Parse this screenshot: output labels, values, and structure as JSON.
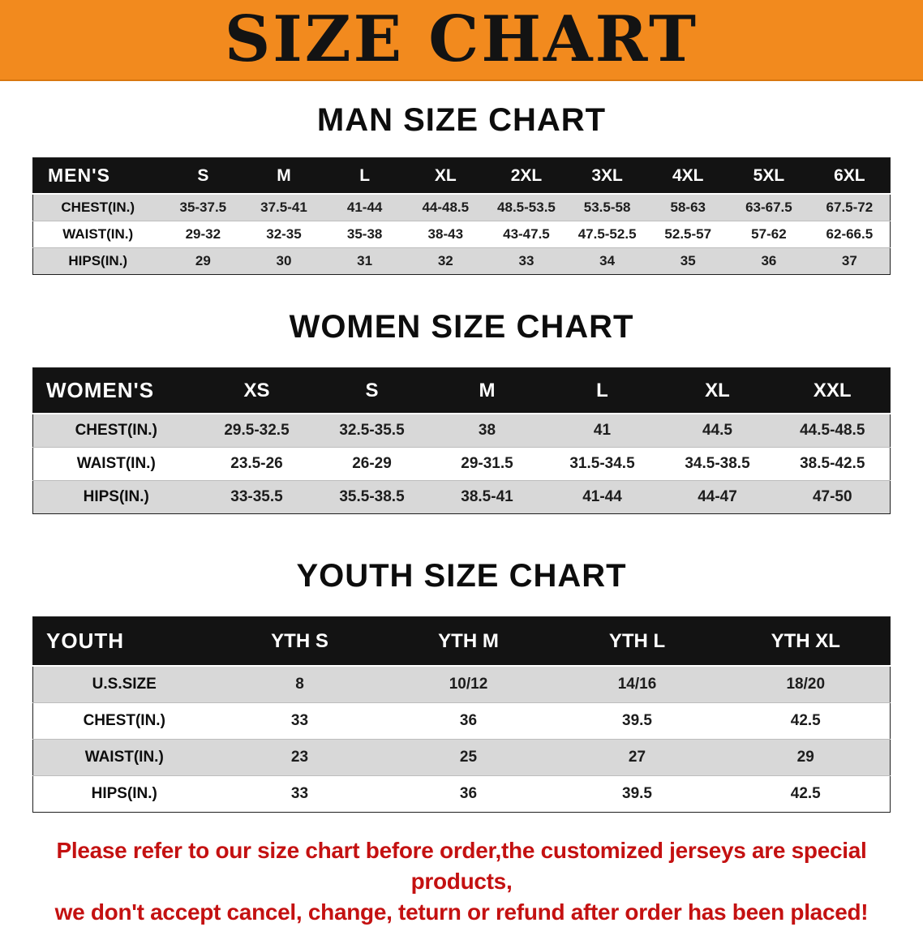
{
  "banner": {
    "title": "SIZE CHART"
  },
  "sections": [
    {
      "heading": "MAN SIZE CHART",
      "table": {
        "label": "MEN'S",
        "columns": [
          "S",
          "M",
          "L",
          "XL",
          "2XL",
          "3XL",
          "4XL",
          "5XL",
          "6XL"
        ],
        "rows": [
          {
            "label": "CHEST(IN.)",
            "values": [
              "35-37.5",
              "37.5-41",
              "41-44",
              "44-48.5",
              "48.5-53.5",
              "53.5-58",
              "58-63",
              "63-67.5",
              "67.5-72"
            ]
          },
          {
            "label": "WAIST(IN.)",
            "values": [
              "29-32",
              "32-35",
              "35-38",
              "38-43",
              "43-47.5",
              "47.5-52.5",
              "52.5-57",
              "57-62",
              "62-66.5"
            ]
          },
          {
            "label": "HIPS(IN.)",
            "values": [
              "29",
              "30",
              "31",
              "32",
              "33",
              "34",
              "35",
              "36",
              "37"
            ]
          }
        ]
      }
    },
    {
      "heading": "WOMEN SIZE CHART",
      "table": {
        "label": "WOMEN'S",
        "columns": [
          "XS",
          "S",
          "M",
          "L",
          "XL",
          "XXL"
        ],
        "rows": [
          {
            "label": "CHEST(IN.)",
            "values": [
              "29.5-32.5",
              "32.5-35.5",
              "38",
              "41",
              "44.5",
              "44.5-48.5"
            ]
          },
          {
            "label": "WAIST(IN.)",
            "values": [
              "23.5-26",
              "26-29",
              "29-31.5",
              "31.5-34.5",
              "34.5-38.5",
              "38.5-42.5"
            ]
          },
          {
            "label": "HIPS(IN.)",
            "values": [
              "33-35.5",
              "35.5-38.5",
              "38.5-41",
              "41-44",
              "44-47",
              "47-50"
            ]
          }
        ]
      }
    },
    {
      "heading": "YOUTH SIZE CHART",
      "table": {
        "label": "YOUTH",
        "columns": [
          "YTH S",
          "YTH M",
          "YTH L",
          "YTH XL"
        ],
        "rows": [
          {
            "label": "U.S.SIZE",
            "values": [
              "8",
              "10/12",
              "14/16",
              "18/20"
            ]
          },
          {
            "label": "CHEST(IN.)",
            "values": [
              "33",
              "36",
              "39.5",
              "42.5"
            ]
          },
          {
            "label": "WAIST(IN.)",
            "values": [
              "23",
              "25",
              "27",
              "29"
            ]
          },
          {
            "label": "HIPS(IN.)",
            "values": [
              "33",
              "36",
              "39.5",
              "42.5"
            ]
          }
        ]
      }
    }
  ],
  "disclaimer": {
    "lines": [
      "Please refer to our size chart before order,the customized jerseys are special products,",
      "we don't accept cancel, change, teturn or refund after order has been placed!"
    ]
  },
  "colors": {
    "banner_bg": "#f28a1e",
    "header_bg": "#131313",
    "row_stripe": "#d8d8d8",
    "disclaimer_text": "#c41111"
  }
}
